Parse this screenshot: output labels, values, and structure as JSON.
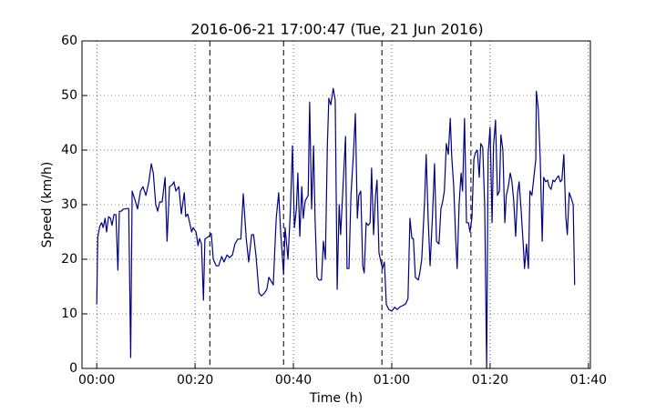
{
  "chart_data": {
    "type": "line",
    "title": "2016-06-21 17:00:47 (Tue, 21 Jun 2016)",
    "x_label": "Time (h)",
    "y_label": "Speed (km/h)",
    "xlim": [
      -3,
      100.4
    ],
    "ylim": [
      0,
      60
    ],
    "xticks": [
      {
        "value": 0,
        "label": "00:00"
      },
      {
        "value": 20,
        "label": "00:20"
      },
      {
        "value": 40,
        "label": "00:40"
      },
      {
        "value": 60,
        "label": "01:00"
      },
      {
        "value": 80,
        "label": "01:20"
      },
      {
        "value": 100,
        "label": "01:40"
      }
    ],
    "yticks": [
      0,
      10,
      20,
      30,
      40,
      50,
      60
    ],
    "grid": true,
    "vlines": [
      23,
      38,
      58,
      76.1
    ],
    "series": [
      {
        "color": "#000080",
        "x": [
          0,
          0.2,
          0.6,
          1.0,
          1.3,
          1.7,
          2.0,
          2.4,
          2.8,
          3.1,
          3.5,
          3.9,
          4.3,
          4.6,
          5.0,
          5.4,
          5.7,
          6.1,
          6.5,
          6.9,
          7.2,
          7.8,
          8.3,
          8.9,
          9.4,
          10.0,
          10.6,
          11.1,
          11.5,
          12.0,
          12.4,
          12.8,
          13.3,
          13.9,
          14.3,
          14.8,
          15.4,
          15.7,
          16.1,
          16.7,
          17.2,
          17.8,
          18.1,
          18.5,
          18.9,
          19.3,
          19.6,
          20.2,
          20.6,
          20.9,
          21.3,
          21.7,
          22.0,
          22.8,
          23.3,
          23.7,
          24.3,
          24.8,
          25.4,
          25.9,
          26.5,
          27.0,
          27.6,
          28.1,
          28.7,
          29.3,
          29.8,
          30.4,
          30.9,
          31.5,
          31.9,
          32.4,
          33.0,
          33.5,
          34.1,
          34.6,
          35.0,
          35.6,
          35.9,
          36.5,
          37.0,
          37.4,
          38.0,
          38.3,
          38.9,
          39.4,
          39.8,
          40.2,
          40.6,
          40.9,
          41.3,
          41.7,
          42.0,
          42.4,
          43.0,
          43.3,
          43.7,
          44.1,
          44.4,
          44.8,
          45.2,
          45.7,
          46.1,
          46.5,
          46.9,
          47.2,
          47.6,
          48.1,
          48.5,
          48.9,
          49.3,
          49.6,
          50.0,
          50.6,
          50.9,
          51.3,
          51.7,
          52.2,
          52.6,
          53.0,
          53.3,
          53.7,
          54.1,
          54.4,
          54.8,
          55.2,
          55.6,
          55.9,
          56.3,
          56.7,
          57.0,
          57.4,
          57.8,
          58.1,
          58.5,
          58.9,
          59.4,
          60.0,
          60.6,
          61.1,
          61.7,
          62.2,
          62.8,
          63.3,
          63.7,
          64.1,
          64.4,
          64.8,
          65.4,
          65.7,
          66.1,
          66.7,
          67.0,
          67.4,
          67.8,
          68.3,
          68.7,
          69.1,
          69.6,
          70.0,
          70.4,
          70.7,
          71.1,
          71.5,
          71.9,
          72.2,
          72.6,
          73.0,
          73.3,
          73.7,
          74.1,
          74.4,
          74.8,
          75.2,
          75.6,
          75.9,
          76.3,
          76.7,
          77.0,
          77.4,
          77.8,
          78.1,
          78.5,
          78.9,
          79.3,
          79.6,
          80.0,
          80.4,
          80.7,
          81.1,
          81.5,
          81.9,
          82.2,
          82.6,
          83.0,
          83.3,
          83.7,
          84.1,
          84.4,
          84.8,
          85.2,
          85.6,
          85.9,
          86.3,
          86.7,
          87.0,
          87.4,
          87.8,
          88.1,
          88.5,
          88.9,
          89.3,
          89.4,
          89.8,
          90.2,
          90.6,
          90.9,
          91.3,
          91.7,
          92.0,
          92.4,
          92.8,
          93.1,
          93.5,
          93.9,
          94.3,
          94.6,
          95.0,
          95.4,
          95.7,
          96.1,
          96.5,
          96.9,
          97.2
        ],
        "values": [
          11.7,
          24,
          26,
          26.7,
          25.8,
          27.5,
          25,
          27.8,
          27.5,
          26.2,
          28.2,
          28.2,
          18,
          28.8,
          28.8,
          29.2,
          29.2,
          29.3,
          29.3,
          2,
          32.5,
          30.8,
          29.2,
          32.5,
          33.3,
          31.7,
          34.2,
          37.5,
          35.8,
          30,
          28.8,
          30.5,
          30.5,
          35,
          23.3,
          33.3,
          33.7,
          34.2,
          32.5,
          33.3,
          28.3,
          32.2,
          27.8,
          28.3,
          26.7,
          25,
          25.8,
          25,
          22.5,
          23.8,
          22.8,
          12.5,
          23.7,
          24.2,
          24.7,
          20,
          18.8,
          18.8,
          20.5,
          19.5,
          20.8,
          20.3,
          20.8,
          22.8,
          23.7,
          23.7,
          32,
          23.8,
          19.5,
          24.5,
          24.5,
          20.5,
          13.8,
          13.3,
          13.8,
          14.5,
          16.7,
          15.8,
          15.3,
          27.5,
          32.2,
          25,
          17.2,
          25.8,
          20,
          29.2,
          40.8,
          25.8,
          29.2,
          35.8,
          24.2,
          33.3,
          27.5,
          30.7,
          31.7,
          48.8,
          29.2,
          40.8,
          27.5,
          16.7,
          16.2,
          16.2,
          23.3,
          20,
          40.8,
          49.5,
          48.3,
          51.3,
          49.2,
          14.5,
          30,
          24.5,
          31.7,
          42.5,
          18.3,
          18.3,
          31.7,
          39.2,
          46.7,
          27.5,
          31.7,
          32.5,
          18.8,
          17.5,
          26.7,
          26.2,
          26.7,
          36.7,
          24.5,
          31.7,
          34.5,
          21.2,
          19.5,
          18.3,
          19.5,
          11.7,
          10.8,
          10.5,
          11.2,
          10.8,
          11.3,
          11.5,
          11.8,
          12.8,
          27.5,
          23.8,
          23.8,
          16.7,
          16.2,
          17.5,
          20,
          31.2,
          39.2,
          27.5,
          18.8,
          28.3,
          37.5,
          23.3,
          22.8,
          29.2,
          30.8,
          32.5,
          41.2,
          39.2,
          45.8,
          38.8,
          33.3,
          23.8,
          18.3,
          30,
          35.8,
          32.5,
          45.8,
          26.7,
          26.7,
          25,
          27.5,
          38.3,
          39.5,
          40,
          35,
          41.2,
          40.5,
          30,
          0,
          39.2,
          44.2,
          26.7,
          40.8,
          45.5,
          31.7,
          32.5,
          42.8,
          40,
          26.7,
          31.7,
          33.3,
          35.8,
          34.5,
          30.8,
          24.2,
          32.2,
          34.2,
          29.2,
          23.3,
          18.3,
          22.8,
          18.3,
          32.5,
          31.7,
          35,
          38.3,
          50.8,
          47.5,
          38.3,
          23.3,
          35,
          34.2,
          34.5,
          33.3,
          32.8,
          34.5,
          34.2,
          34.8,
          35.3,
          34.2,
          34.5,
          39.2,
          27.8,
          24.5,
          32.2,
          31.2,
          30,
          15.3
        ]
      }
    ]
  }
}
